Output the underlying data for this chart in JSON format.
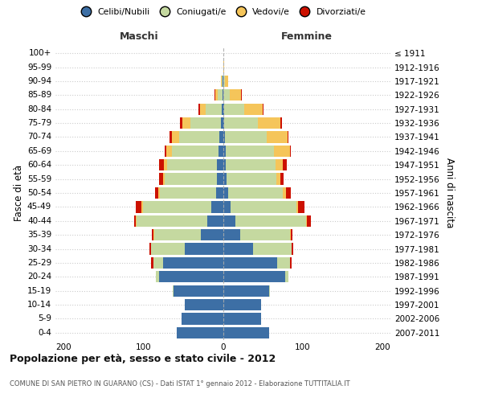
{
  "age_groups_bottom_to_top": [
    "0-4",
    "5-9",
    "10-14",
    "15-19",
    "20-24",
    "25-29",
    "30-34",
    "35-39",
    "40-44",
    "45-49",
    "50-54",
    "55-59",
    "60-64",
    "65-69",
    "70-74",
    "75-79",
    "80-84",
    "85-89",
    "90-94",
    "95-99",
    "100+"
  ],
  "birth_years_bottom_to_top": [
    "2007-2011",
    "2002-2006",
    "1997-2001",
    "1992-1996",
    "1987-1991",
    "1982-1986",
    "1977-1981",
    "1972-1976",
    "1967-1971",
    "1962-1966",
    "1957-1961",
    "1952-1956",
    "1947-1951",
    "1942-1946",
    "1937-1941",
    "1932-1936",
    "1927-1931",
    "1922-1926",
    "1917-1921",
    "1912-1916",
    "≤ 1911"
  ],
  "males_celibe": [
    58,
    52,
    48,
    62,
    80,
    75,
    48,
    28,
    20,
    15,
    9,
    8,
    8,
    6,
    5,
    3,
    2,
    1,
    1,
    0,
    0
  ],
  "males_coniugato": [
    0,
    0,
    0,
    1,
    4,
    12,
    42,
    58,
    88,
    85,
    70,
    65,
    62,
    58,
    50,
    38,
    20,
    6,
    1,
    0,
    0
  ],
  "males_vedovo": [
    0,
    0,
    0,
    0,
    0,
    0,
    0,
    1,
    1,
    2,
    2,
    2,
    4,
    7,
    9,
    10,
    7,
    3,
    1,
    0,
    0
  ],
  "males_divorziato": [
    0,
    0,
    0,
    0,
    0,
    3,
    2,
    2,
    2,
    7,
    4,
    5,
    6,
    2,
    3,
    3,
    2,
    1,
    0,
    0,
    0
  ],
  "females_celibe": [
    58,
    48,
    48,
    58,
    78,
    68,
    38,
    22,
    16,
    10,
    7,
    5,
    4,
    4,
    3,
    2,
    2,
    1,
    1,
    1,
    0
  ],
  "females_coniugata": [
    0,
    0,
    0,
    1,
    4,
    16,
    48,
    62,
    88,
    82,
    68,
    62,
    62,
    60,
    52,
    42,
    25,
    8,
    2,
    0,
    0
  ],
  "females_vedova": [
    0,
    0,
    0,
    0,
    0,
    0,
    0,
    1,
    1,
    2,
    4,
    5,
    9,
    20,
    26,
    28,
    23,
    14,
    4,
    1,
    0
  ],
  "females_divorziata": [
    0,
    0,
    0,
    0,
    0,
    2,
    2,
    2,
    5,
    8,
    6,
    4,
    5,
    1,
    1,
    2,
    1,
    1,
    0,
    0,
    0
  ],
  "colors": {
    "celibe": "#3d6fa5",
    "coniugato": "#c5d9a0",
    "vedovo": "#f5c55a",
    "divorziato": "#cc1100"
  },
  "xlim": 210,
  "title": "Popolazione per età, sesso e stato civile - 2012",
  "subtitle": "COMUNE DI SAN PIETRO IN GUARANO (CS) - Dati ISTAT 1° gennaio 2012 - Elaborazione TUTTITALIA.IT",
  "ylabel_left": "Fasce di età",
  "ylabel_right": "Anni di nascita",
  "label_maschi": "Maschi",
  "label_femmine": "Femmine",
  "legend_labels": [
    "Celibi/Nubili",
    "Coniugati/e",
    "Vedovi/e",
    "Divorziati/e"
  ],
  "bg_color": "#ffffff",
  "grid_color": "#cccccc"
}
